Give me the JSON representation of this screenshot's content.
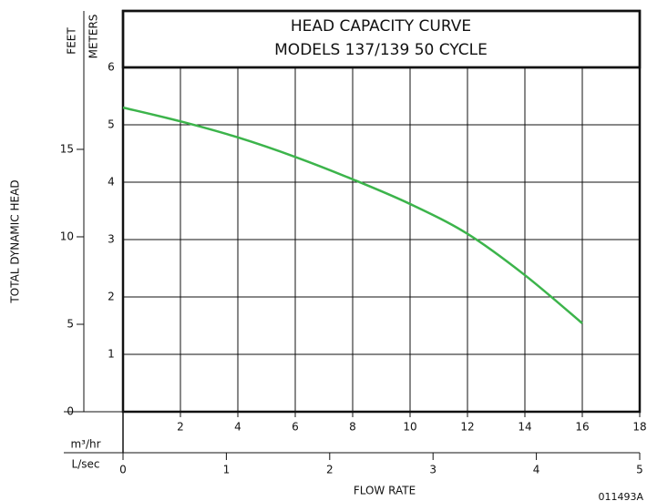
{
  "chart_data": {
    "type": "line",
    "title": [
      "HEAD CAPACITY CURVE",
      "MODELS 137/139  50 CYCLE"
    ],
    "y_label": "TOTAL DYNAMIC HEAD",
    "y_unit": "METERS",
    "y2_unit": "FEET",
    "x_unit": "m³/hr",
    "x2_unit": "L/sec",
    "x_label": "FLOW RATE",
    "code": "011493A",
    "x": [
      0,
      2,
      4,
      6,
      8,
      10,
      12,
      14,
      16
    ],
    "series": [
      {
        "color": "#3cb44b",
        "values": [
          5.3,
          5.06,
          4.78,
          4.44,
          4.05,
          3.62,
          3.1,
          2.38,
          1.54
        ]
      }
    ],
    "xlim": [
      0,
      18
    ],
    "xticks": [
      2,
      4,
      6,
      8,
      10,
      12,
      14,
      16,
      18
    ],
    "ylim": [
      0,
      6
    ],
    "yticks": [
      1,
      2,
      3,
      4,
      5,
      6
    ],
    "y2lim": [
      0,
      19.685
    ],
    "y2ticks": [
      0,
      5,
      10,
      15
    ],
    "x2lim": [
      0,
      5
    ],
    "x2ticks": [
      0,
      1,
      2,
      3,
      4,
      5
    ],
    "grid": true
  }
}
